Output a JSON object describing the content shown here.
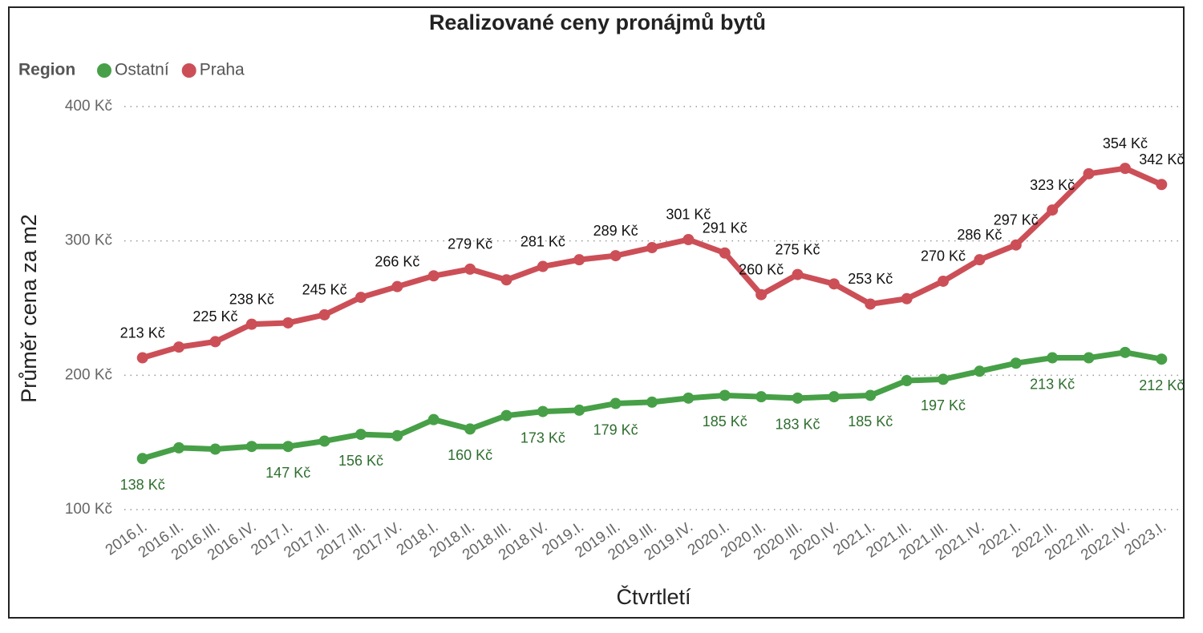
{
  "chart_data": {
    "type": "line",
    "title": "Realizované ceny pronájmů bytů",
    "legend_title": "Region",
    "legend_position": "top-left",
    "x_label": "Čtvrtletí",
    "y_label": "Průměr cena za m2",
    "categories": [
      "2016.I.",
      "2016.II.",
      "2016.III.",
      "2016.IV.",
      "2017.I.",
      "2017.II.",
      "2017.III.",
      "2017.IV.",
      "2018.I.",
      "2018.II.",
      "2018.III.",
      "2018.IV.",
      "2019.I.",
      "2019.II.",
      "2019.III.",
      "2019.IV.",
      "2020.I.",
      "2020.II.",
      "2020.III.",
      "2020.IV.",
      "2021.I.",
      "2021.II.",
      "2021.III.",
      "2021.IV.",
      "2022.I.",
      "2022.II.",
      "2022.III.",
      "2022.IV.",
      "2023.I."
    ],
    "ylim": [
      100,
      400
    ],
    "yticks": [
      {
        "value": 100,
        "label": "100 Kč"
      },
      {
        "value": 200,
        "label": "200 Kč"
      },
      {
        "value": 300,
        "label": "300 Kč"
      },
      {
        "value": 400,
        "label": "400 Kč"
      }
    ],
    "grid": true,
    "series": [
      {
        "name": "Ostatní",
        "color": "#47a047",
        "label_color": "#2e6e2e",
        "label_side": "below",
        "values": [
          138,
          146,
          145,
          147,
          147,
          151,
          156,
          155,
          167,
          160,
          170,
          173,
          174,
          179,
          180,
          183,
          185,
          184,
          183,
          184,
          185,
          196,
          197,
          203,
          209,
          213,
          213,
          217,
          212
        ],
        "value_labels": [
          "138 Kč",
          null,
          null,
          null,
          "147 Kč",
          null,
          "156 Kč",
          null,
          null,
          "160 Kč",
          null,
          "173 Kč",
          null,
          "179 Kč",
          null,
          null,
          "185 Kč",
          null,
          "183 Kč",
          null,
          "185 Kč",
          null,
          "197 Kč",
          null,
          null,
          "213 Kč",
          null,
          null,
          "212 Kč"
        ]
      },
      {
        "name": "Praha",
        "color": "#cc4f57",
        "label_color": "#111111",
        "label_side": "above",
        "values": [
          213,
          221,
          225,
          238,
          239,
          245,
          258,
          266,
          274,
          279,
          271,
          281,
          286,
          289,
          295,
          301,
          291,
          260,
          275,
          268,
          253,
          257,
          270,
          286,
          297,
          323,
          350,
          354,
          342
        ],
        "value_labels": [
          "213 Kč",
          null,
          "225 Kč",
          "238 Kč",
          null,
          "245 Kč",
          null,
          "266 Kč",
          null,
          "279 Kč",
          null,
          "281 Kč",
          null,
          "289 Kč",
          null,
          "301 Kč",
          "291 Kč",
          "260 Kč",
          "275 Kč",
          null,
          "253 Kč",
          null,
          "270 Kč",
          "286 Kč",
          "297 Kč",
          "323 Kč",
          null,
          "354 Kč",
          "342 Kč"
        ]
      }
    ]
  }
}
